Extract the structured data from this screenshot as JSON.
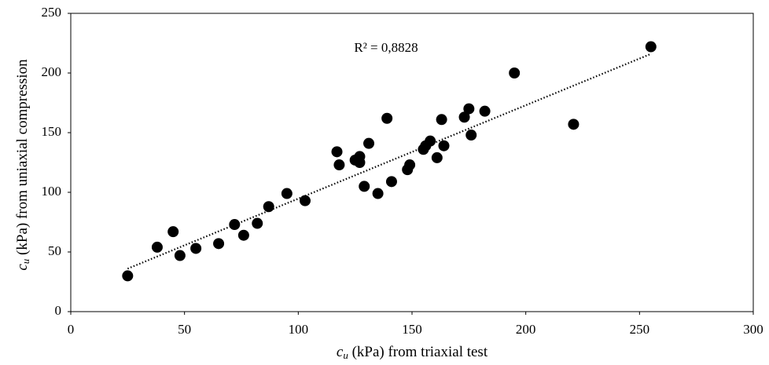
{
  "chart_data": {
    "type": "scatter",
    "x_label": [
      "c",
      "u",
      " (kPa) from triaxial test"
    ],
    "y_label": [
      "c",
      "u",
      " (kPa) from uniaxial compression"
    ],
    "annotation": "R² = 0,8828",
    "color": "#000000",
    "x": [
      25,
      38,
      45,
      48,
      55,
      65,
      72,
      76,
      82,
      87,
      95,
      103,
      117,
      118,
      125,
      127,
      127,
      129,
      131,
      135,
      139,
      141,
      148,
      149,
      155,
      156,
      158,
      161,
      163,
      164,
      173,
      175,
      176,
      182,
      195,
      221,
      255
    ],
    "values": [
      30,
      54,
      67,
      47,
      53,
      57,
      73,
      64,
      74,
      88,
      99,
      93,
      134,
      123,
      127,
      130,
      125,
      105,
      141,
      99,
      162,
      109,
      119,
      123,
      136,
      139,
      143,
      129,
      161,
      139,
      163,
      170,
      148,
      168,
      200,
      157,
      222
    ],
    "trendline": {
      "x": [
        25,
        255
      ],
      "y": [
        36,
        216
      ]
    },
    "xlim": [
      0,
      300
    ],
    "xticks": [
      0,
      50,
      100,
      150,
      200,
      250,
      300
    ],
    "ylim": [
      0,
      250
    ],
    "yticks": [
      0,
      50,
      100,
      150,
      200,
      250
    ],
    "grid": false
  }
}
